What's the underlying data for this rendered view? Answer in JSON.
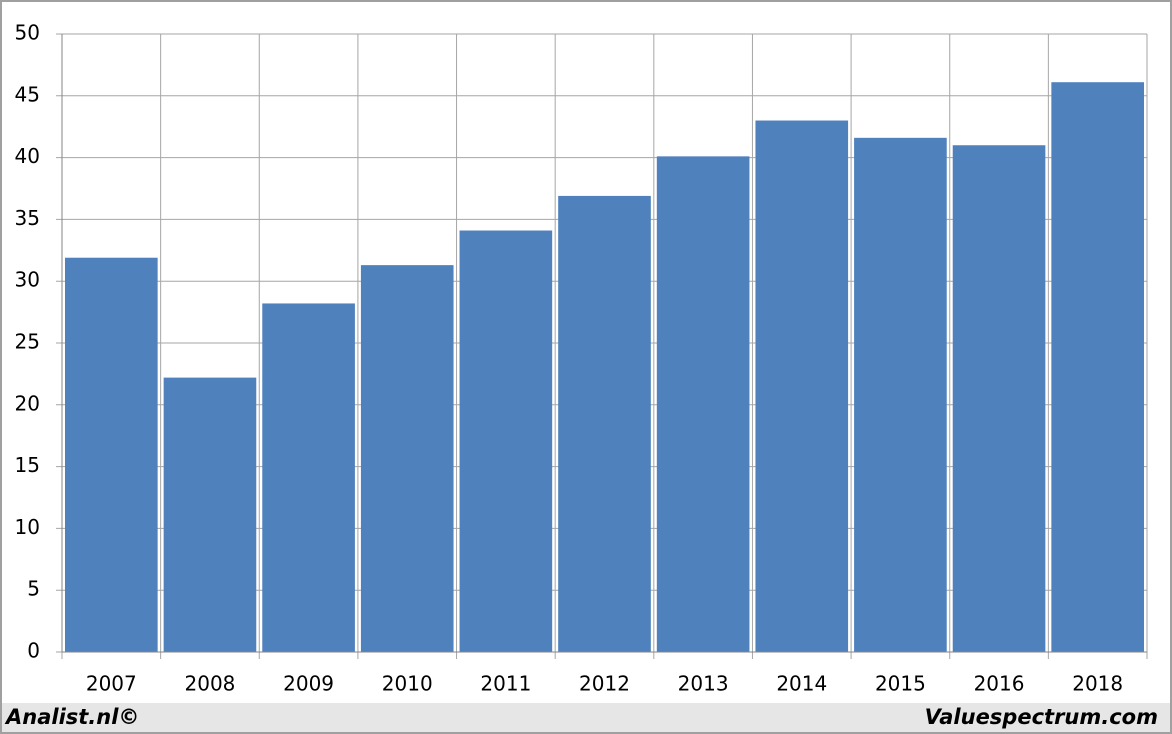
{
  "chart_data": {
    "type": "bar",
    "categories": [
      "2007",
      "2008",
      "2009",
      "2010",
      "2011",
      "2012",
      "2013",
      "2014",
      "2015",
      "2016",
      "2018"
    ],
    "values": [
      31.9,
      22.2,
      28.2,
      31.3,
      34.1,
      36.9,
      40.1,
      43.0,
      41.6,
      41.0,
      46.1
    ],
    "color": "#4f81bd",
    "ylim": [
      0,
      50
    ],
    "yticks": [
      0,
      5,
      10,
      15,
      20,
      25,
      30,
      35,
      40,
      45,
      50
    ],
    "grid": true,
    "annotations": [
      "Analist.nl©",
      "Valuespectrum.com"
    ]
  }
}
